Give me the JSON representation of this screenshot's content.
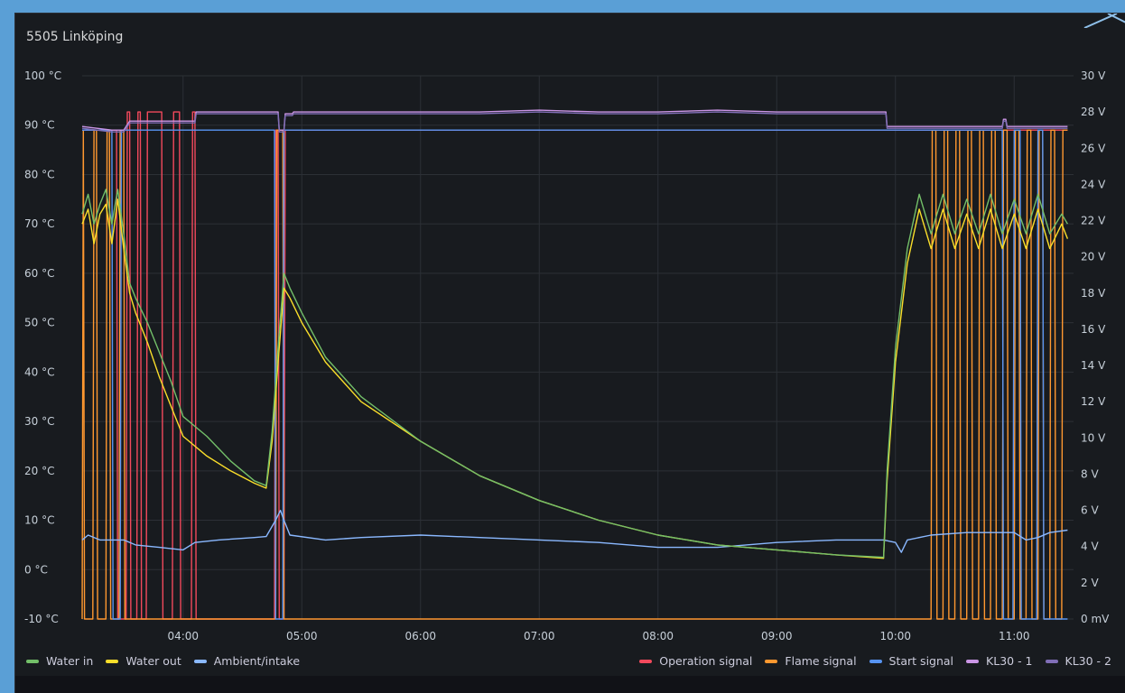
{
  "panel": {
    "title": "5505 Linköping"
  },
  "chart_data": {
    "type": "line",
    "x_axis": {
      "ticks": [
        "04:00",
        "05:00",
        "06:00",
        "07:00",
        "08:00",
        "09:00",
        "10:00",
        "11:00"
      ],
      "range_hours": [
        3.15,
        11.5
      ]
    },
    "y_left": {
      "unit": "°C",
      "ylim": [
        -10,
        100
      ],
      "ticks": [
        "100 °C",
        "90 °C",
        "80 °C",
        "70 °C",
        "60 °C",
        "50 °C",
        "40 °C",
        "30 °C",
        "20 °C",
        "10 °C",
        "0 °C",
        "-10 °C"
      ]
    },
    "y_right": {
      "unit": "V",
      "ylim": [
        0,
        30
      ],
      "ticks": [
        "30 V",
        "28 V",
        "26 V",
        "24 V",
        "22 V",
        "20 V",
        "18 V",
        "16 V",
        "14 V",
        "12 V",
        "10 V",
        "8 V",
        "6 V",
        "4 V",
        "2 V",
        "0 mV"
      ]
    },
    "grid": true,
    "legend_placement": "bottom",
    "series": [
      {
        "name": "Water in",
        "axis": "left",
        "color": "#73bf69",
        "x": [
          3.15,
          3.2,
          3.25,
          3.3,
          3.35,
          3.4,
          3.45,
          3.5,
          3.55,
          3.6,
          3.7,
          3.8,
          3.9,
          4.0,
          4.2,
          4.4,
          4.6,
          4.7,
          4.75,
          4.8,
          4.85,
          4.9,
          5.0,
          5.2,
          5.5,
          6.0,
          6.5,
          7.0,
          7.5,
          8.0,
          8.5,
          9.0,
          9.5,
          9.9,
          9.93,
          10.0,
          10.1,
          10.2,
          10.3,
          10.4,
          10.5,
          10.6,
          10.7,
          10.8,
          10.9,
          11.0,
          11.1,
          11.2,
          11.3,
          11.4,
          11.45
        ],
        "y": [
          72,
          76,
          70,
          74,
          77,
          70,
          77,
          68,
          58,
          55,
          50,
          44,
          38,
          31,
          27,
          22,
          18,
          17,
          28,
          45,
          60,
          57,
          52,
          43,
          35,
          26,
          19,
          14,
          10,
          7,
          5,
          4,
          3,
          2.5,
          20,
          45,
          65,
          76,
          68,
          76,
          68,
          75,
          68,
          76,
          68,
          75,
          68,
          76,
          68,
          72,
          70
        ]
      },
      {
        "name": "Water out",
        "axis": "left",
        "color": "#fade2a",
        "x": [
          3.15,
          3.2,
          3.25,
          3.3,
          3.35,
          3.4,
          3.45,
          3.5,
          3.55,
          3.6,
          3.7,
          3.8,
          3.9,
          4.0,
          4.2,
          4.4,
          4.6,
          4.7,
          4.75,
          4.8,
          4.85,
          4.9,
          5.0,
          5.2,
          5.5,
          6.0,
          6.5,
          7.0,
          7.5,
          8.0,
          8.5,
          9.0,
          9.5,
          9.9,
          9.93,
          10.0,
          10.1,
          10.2,
          10.3,
          10.4,
          10.5,
          10.6,
          10.7,
          10.8,
          10.9,
          11.0,
          11.1,
          11.2,
          11.3,
          11.4,
          11.45
        ],
        "y": [
          70,
          73,
          66,
          72,
          74,
          66,
          75,
          65,
          56,
          52,
          46,
          39,
          33,
          27,
          23,
          20,
          17.5,
          16.5,
          26,
          42,
          57,
          55,
          50,
          42,
          34,
          26,
          19,
          14,
          10,
          7,
          5,
          4,
          3,
          2.3,
          18,
          42,
          62,
          73,
          65,
          73,
          65,
          72,
          65,
          73,
          65,
          72,
          65,
          73,
          65,
          70,
          67
        ]
      },
      {
        "name": "Ambient/intake",
        "axis": "left",
        "color": "#8ab8ff",
        "x": [
          3.15,
          3.2,
          3.3,
          3.4,
          3.5,
          3.6,
          3.8,
          4.0,
          4.1,
          4.3,
          4.6,
          4.7,
          4.78,
          4.82,
          4.85,
          4.9,
          5.2,
          5.5,
          6.0,
          6.5,
          7.0,
          7.5,
          8.0,
          8.5,
          9.0,
          9.5,
          9.9,
          10.0,
          10.05,
          10.1,
          10.3,
          10.6,
          10.8,
          11.0,
          11.1,
          11.2,
          11.3,
          11.45
        ],
        "y": [
          6,
          7,
          6,
          6,
          6,
          5,
          4.5,
          4,
          5.5,
          6,
          6.5,
          6.7,
          10,
          12,
          10,
          7,
          6,
          6.5,
          7,
          6.5,
          6,
          5.5,
          4.5,
          4.5,
          5.5,
          6,
          6,
          5.5,
          3.5,
          6,
          7,
          7.5,
          7.5,
          7.5,
          6,
          6.5,
          7.5,
          8
        ]
      },
      {
        "name": "Operation signal",
        "axis": "right",
        "color": "#f2495c",
        "x": [
          3.15,
          3.17,
          3.18,
          3.44,
          3.45,
          3.52,
          3.53,
          3.55,
          3.56,
          3.61,
          3.62,
          3.64,
          3.65,
          3.69,
          3.7,
          3.82,
          3.83,
          3.91,
          3.92,
          3.97,
          3.98,
          4.07,
          4.08,
          4.1,
          4.11,
          4.77,
          4.78,
          4.8,
          4.81,
          4.85,
          4.86,
          9.93,
          9.94,
          11.45
        ],
        "y": [
          27,
          27,
          27,
          27,
          0,
          0,
          28,
          28,
          0,
          0,
          28,
          28,
          0,
          0,
          28,
          28,
          0,
          0,
          28,
          28,
          0,
          0,
          28,
          28,
          0,
          0,
          27,
          27,
          0,
          0,
          27,
          27,
          27,
          27
        ]
      },
      {
        "name": "Flame signal",
        "axis": "right",
        "color": "#ff9830",
        "x": [
          3.15,
          3.16,
          3.17,
          3.24,
          3.25,
          3.27,
          3.28,
          3.35,
          3.36,
          3.38,
          3.39,
          3.46,
          3.47,
          3.5,
          3.51,
          4.11,
          4.12,
          4.78,
          4.79,
          4.84,
          4.85,
          9.93,
          9.95,
          10.3,
          10.31,
          10.34,
          10.35,
          10.4,
          10.41,
          10.44,
          10.45,
          10.5,
          10.51,
          10.54,
          10.55,
          10.6,
          10.61,
          10.64,
          10.65,
          10.7,
          10.71,
          10.74,
          10.75,
          10.8,
          10.81,
          10.84,
          10.85,
          10.9,
          10.91,
          10.94,
          10.95,
          11.0,
          11.01,
          11.04,
          11.05,
          11.1,
          11.11,
          11.14,
          11.15,
          11.2,
          11.21,
          11.24,
          11.25,
          11.3,
          11.31,
          11.34,
          11.35,
          11.4,
          11.41,
          11.45
        ],
        "y": [
          0,
          27,
          0,
          0,
          27,
          27,
          0,
          0,
          27,
          27,
          0,
          0,
          27,
          27,
          0,
          0,
          0,
          0,
          27,
          27,
          0,
          0,
          0,
          0,
          27,
          27,
          0,
          0,
          27,
          27,
          0,
          0,
          27,
          27,
          0,
          0,
          27,
          27,
          0,
          0,
          27,
          27,
          0,
          0,
          27,
          27,
          0,
          0,
          27,
          27,
          0,
          0,
          27,
          27,
          0,
          0,
          27,
          27,
          0,
          0,
          27,
          27,
          0,
          0,
          27,
          27,
          0,
          0,
          27,
          27
        ]
      },
      {
        "name": "Start signal",
        "axis": "right",
        "color": "#5794f2",
        "x": [
          3.15,
          3.4,
          3.41,
          3.47,
          3.48,
          4.77,
          4.78,
          4.84,
          4.85,
          9.93,
          9.94,
          10.9,
          10.91,
          10.99,
          11.0,
          11.05,
          11.06,
          11.19,
          11.2,
          11.24,
          11.25,
          11.45
        ],
        "y": [
          27,
          27,
          0,
          0,
          27,
          27,
          0,
          0,
          27,
          27,
          27,
          27,
          0,
          0,
          27,
          27,
          0,
          0,
          27,
          27,
          0,
          0
        ]
      },
      {
        "name": "KL30 - 1",
        "axis": "right",
        "color": "#ca95e5",
        "x": [
          3.15,
          3.4,
          3.5,
          3.55,
          3.56,
          4.1,
          4.11,
          4.12,
          4.8,
          4.81,
          4.85,
          4.86,
          4.92,
          4.93,
          5.5,
          6.0,
          6.5,
          7.0,
          7.5,
          8.0,
          8.5,
          9.0,
          9.5,
          9.92,
          9.93,
          10.5,
          10.9,
          10.91,
          10.93,
          10.94,
          11.0,
          11.1,
          11.45
        ],
        "y": [
          27.2,
          27,
          27,
          27.5,
          27.5,
          27.5,
          28,
          28,
          28,
          27,
          27,
          27.9,
          27.9,
          28,
          28,
          28,
          28,
          28.1,
          28,
          28,
          28.1,
          28,
          28,
          28,
          27.2,
          27.2,
          27.2,
          27.6,
          27.6,
          27.2,
          27.2,
          27.2,
          27.2
        ]
      },
      {
        "name": "KL30 - 2",
        "axis": "right",
        "color": "#806eb7",
        "x": [
          3.15,
          3.4,
          3.5,
          3.55,
          3.56,
          4.1,
          4.11,
          4.12,
          4.8,
          4.81,
          4.85,
          4.86,
          4.92,
          4.93,
          5.5,
          6.0,
          6.5,
          7.0,
          7.5,
          8.0,
          8.5,
          9.0,
          9.5,
          9.92,
          9.93,
          10.5,
          10.9,
          10.91,
          10.93,
          10.94,
          11.0,
          11.1,
          11.45
        ],
        "y": [
          27.1,
          26.9,
          26.9,
          27.4,
          27.4,
          27.4,
          27.9,
          27.9,
          27.9,
          26.9,
          26.9,
          27.8,
          27.8,
          27.9,
          27.9,
          27.9,
          27.9,
          28,
          27.9,
          27.9,
          28,
          27.9,
          27.9,
          27.9,
          27.1,
          27.1,
          27.1,
          27.5,
          27.5,
          27.1,
          27.1,
          27.1,
          27.1
        ]
      }
    ]
  },
  "legend": {
    "left": [
      {
        "label": "Water in",
        "color": "#73bf69"
      },
      {
        "label": "Water out",
        "color": "#fade2a"
      },
      {
        "label": "Ambient/intake",
        "color": "#8ab8ff"
      }
    ],
    "right": [
      {
        "label": "Operation signal",
        "color": "#f2495c"
      },
      {
        "label": "Flame signal",
        "color": "#ff9830"
      },
      {
        "label": "Start signal",
        "color": "#5794f2"
      },
      {
        "label": "KL30 - 1",
        "color": "#ca95e5"
      },
      {
        "label": "KL30 - 2",
        "color": "#806eb7"
      }
    ]
  }
}
